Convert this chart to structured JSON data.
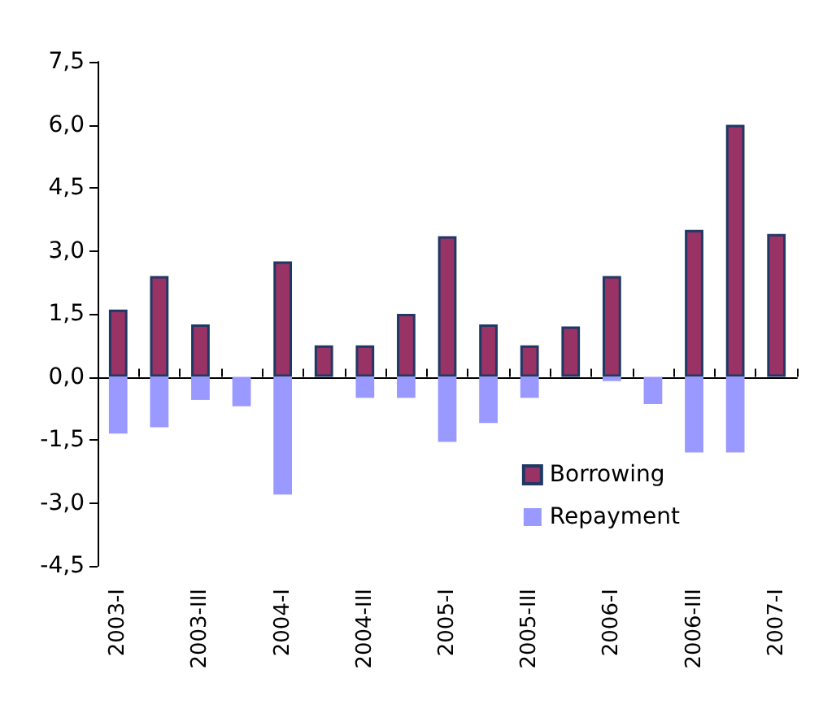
{
  "chart_data": {
    "type": "bar",
    "categories": [
      "2003-I",
      null,
      "2003-III",
      null,
      "2004-I",
      null,
      "2004-III",
      null,
      "2005-I",
      null,
      "2005-III",
      null,
      "2006-I",
      null,
      "2006-III",
      null,
      "2007-I"
    ],
    "series": [
      {
        "name": "Borrowing",
        "color": "#993366",
        "values": [
          1.6,
          2.4,
          1.25,
          null,
          2.75,
          0.75,
          0.75,
          1.5,
          3.35,
          1.25,
          0.75,
          1.2,
          2.4,
          null,
          3.5,
          6.0,
          3.4
        ]
      },
      {
        "name": "Repayment",
        "color": "#9999ff",
        "values": [
          -1.35,
          -1.2,
          -0.55,
          -0.7,
          -2.8,
          null,
          -0.5,
          -0.5,
          -1.55,
          -1.1,
          -0.5,
          null,
          -0.1,
          -0.65,
          -1.8,
          -1.8,
          null
        ]
      }
    ],
    "ylim": [
      -4.5,
      7.5
    ],
    "yticks": [
      {
        "value": -4.5,
        "label": "-4,5"
      },
      {
        "value": -3,
        "label": "-3,0"
      },
      {
        "value": -1.5,
        "label": "-1,5"
      },
      {
        "value": 0,
        "label": "0,0"
      },
      {
        "value": 1.5,
        "label": "1,5"
      },
      {
        "value": 3,
        "label": "3,0"
      },
      {
        "value": 4.5,
        "label": "4,5"
      },
      {
        "value": 6,
        "label": "6,0"
      },
      {
        "value": 7.5,
        "label": "7,5"
      }
    ],
    "legend": "bottom right",
    "stacked": true
  }
}
